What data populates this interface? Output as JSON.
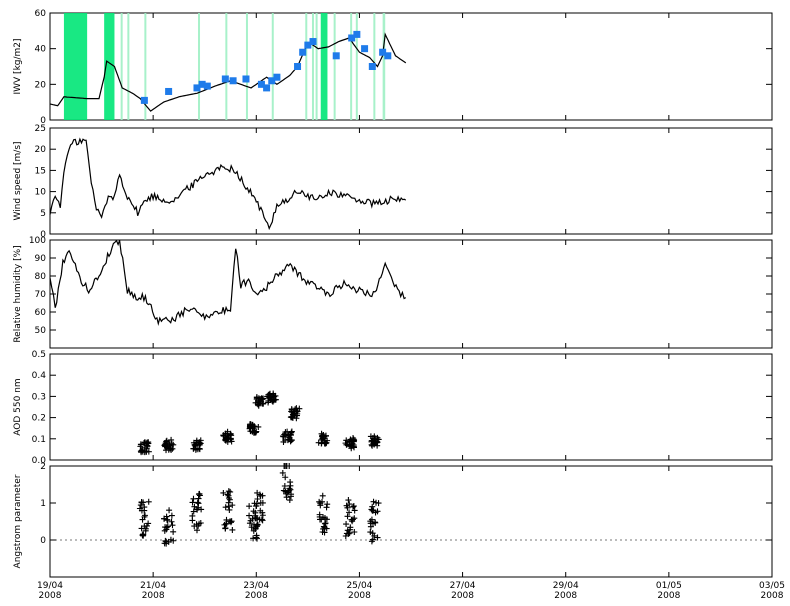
{
  "chart_data": {
    "type": "line",
    "x_axis": {
      "start": "19/04/2008",
      "end": "03/05/2008",
      "tick_labels": [
        {
          "day": 0,
          "date": "19/04",
          "year": "2008"
        },
        {
          "day": 2,
          "date": "21/04",
          "year": "2008"
        },
        {
          "day": 4,
          "date": "23/04",
          "year": "2008"
        },
        {
          "day": 6,
          "date": "25/04",
          "year": "2008"
        },
        {
          "day": 8,
          "date": "27/04",
          "year": "2008"
        },
        {
          "day": 10,
          "date": "29/04",
          "year": "2008"
        },
        {
          "day": 12,
          "date": "01/05",
          "year": "2008"
        },
        {
          "day": 14,
          "date": "03/05",
          "year": "2008"
        }
      ]
    },
    "colors": {
      "line": "#000000",
      "shade": "#00e676",
      "shade_light": "#9ef0c4",
      "marker": "#1e7bea",
      "dotted": "#777777"
    },
    "panels": [
      {
        "ylabel": "IWV [kg/m2]",
        "ylim": [
          0,
          60
        ],
        "yticks": [
          0,
          20,
          40,
          60
        ],
        "shaded_spans": [
          [
            0.27,
            0.72
          ],
          [
            1.05,
            1.25
          ],
          [
            1.37,
            1.4
          ],
          [
            1.5,
            1.52
          ],
          [
            1.83,
            1.86
          ],
          [
            2.87,
            2.9
          ],
          [
            3.4,
            3.43
          ],
          [
            3.8,
            3.83
          ],
          [
            4.3,
            4.32
          ],
          [
            4.95,
            4.98
          ],
          [
            5.08,
            5.1
          ],
          [
            5.15,
            5.18
          ],
          [
            5.25,
            5.38
          ],
          [
            5.5,
            5.52
          ],
          [
            5.82,
            5.85
          ],
          [
            5.93,
            5.96
          ],
          [
            6.27,
            6.3
          ],
          [
            6.45,
            6.5
          ]
        ],
        "line": [
          [
            0.0,
            9
          ],
          [
            0.15,
            8
          ],
          [
            0.27,
            13
          ],
          [
            0.72,
            12
          ],
          [
            0.95,
            12
          ],
          [
            1.05,
            24
          ],
          [
            1.1,
            33
          ],
          [
            1.25,
            30
          ],
          [
            1.4,
            18
          ],
          [
            1.6,
            15
          ],
          [
            1.75,
            12
          ],
          [
            1.95,
            5
          ],
          [
            2.2,
            10
          ],
          [
            2.5,
            13
          ],
          [
            2.85,
            15
          ],
          [
            3.2,
            19
          ],
          [
            3.5,
            22
          ],
          [
            3.7,
            20
          ],
          [
            3.9,
            18
          ],
          [
            4.2,
            24
          ],
          [
            4.4,
            20
          ],
          [
            4.55,
            23
          ],
          [
            4.65,
            25
          ],
          [
            4.8,
            30
          ],
          [
            4.95,
            40
          ],
          [
            5.05,
            43
          ],
          [
            5.2,
            40
          ],
          [
            5.4,
            41
          ],
          [
            5.6,
            44
          ],
          [
            5.8,
            46
          ],
          [
            6.0,
            38
          ],
          [
            6.2,
            35
          ],
          [
            6.35,
            30
          ],
          [
            6.45,
            36
          ],
          [
            6.5,
            48
          ],
          [
            6.7,
            36
          ],
          [
            6.9,
            32
          ]
        ],
        "markers": [
          [
            1.83,
            11
          ],
          [
            2.3,
            16
          ],
          [
            2.85,
            18
          ],
          [
            2.95,
            20
          ],
          [
            3.05,
            19
          ],
          [
            3.4,
            23
          ],
          [
            3.55,
            22
          ],
          [
            3.8,
            23
          ],
          [
            4.1,
            20
          ],
          [
            4.2,
            18
          ],
          [
            4.3,
            22
          ],
          [
            4.4,
            24
          ],
          [
            4.8,
            30
          ],
          [
            4.9,
            38
          ],
          [
            5.0,
            42
          ],
          [
            5.1,
            44
          ],
          [
            5.55,
            36
          ],
          [
            5.85,
            46
          ],
          [
            5.95,
            48
          ],
          [
            6.1,
            40
          ],
          [
            6.25,
            30
          ],
          [
            6.45,
            38
          ],
          [
            6.55,
            36
          ]
        ]
      },
      {
        "ylabel": "Wind speed [m/s]",
        "ylim": [
          0,
          25
        ],
        "yticks": [
          0,
          5,
          10,
          15,
          20,
          25
        ],
        "line": [
          [
            0.0,
            5
          ],
          [
            0.1,
            9
          ],
          [
            0.2,
            7
          ],
          [
            0.3,
            17
          ],
          [
            0.4,
            21
          ],
          [
            0.55,
            22
          ],
          [
            0.7,
            22
          ],
          [
            0.8,
            12
          ],
          [
            0.9,
            6
          ],
          [
            1.0,
            4
          ],
          [
            1.1,
            8
          ],
          [
            1.25,
            9
          ],
          [
            1.35,
            14
          ],
          [
            1.5,
            9
          ],
          [
            1.7,
            5
          ],
          [
            1.85,
            8
          ],
          [
            2.0,
            9
          ],
          [
            2.2,
            8
          ],
          [
            2.4,
            8
          ],
          [
            2.6,
            10
          ],
          [
            2.8,
            12
          ],
          [
            3.0,
            14
          ],
          [
            3.2,
            15
          ],
          [
            3.4,
            16
          ],
          [
            3.6,
            15
          ],
          [
            3.8,
            11
          ],
          [
            4.0,
            8
          ],
          [
            4.15,
            4
          ],
          [
            4.25,
            1
          ],
          [
            4.4,
            7
          ],
          [
            4.6,
            8
          ],
          [
            4.8,
            10
          ],
          [
            5.0,
            9
          ],
          [
            5.2,
            8
          ],
          [
            5.4,
            10
          ],
          [
            5.7,
            9
          ],
          [
            6.0,
            8
          ],
          [
            6.3,
            7
          ],
          [
            6.6,
            8
          ],
          [
            6.9,
            8
          ]
        ]
      },
      {
        "ylabel": "Relative humidity [%]",
        "ylim": [
          40,
          100
        ],
        "yticks": [
          50,
          60,
          70,
          80,
          90,
          100
        ],
        "line": [
          [
            0.0,
            80
          ],
          [
            0.1,
            62
          ],
          [
            0.25,
            88
          ],
          [
            0.4,
            94
          ],
          [
            0.55,
            80
          ],
          [
            0.75,
            72
          ],
          [
            0.95,
            80
          ],
          [
            1.2,
            96
          ],
          [
            1.35,
            100
          ],
          [
            1.5,
            72
          ],
          [
            1.7,
            68
          ],
          [
            1.85,
            68
          ],
          [
            2.1,
            55
          ],
          [
            2.4,
            56
          ],
          [
            2.7,
            62
          ],
          [
            3.0,
            58
          ],
          [
            3.3,
            60
          ],
          [
            3.5,
            62
          ],
          [
            3.6,
            96
          ],
          [
            3.7,
            75
          ],
          [
            3.85,
            78
          ],
          [
            4.0,
            70
          ],
          [
            4.2,
            74
          ],
          [
            4.4,
            80
          ],
          [
            4.6,
            86
          ],
          [
            4.8,
            82
          ],
          [
            5.0,
            76
          ],
          [
            5.2,
            74
          ],
          [
            5.4,
            70
          ],
          [
            5.7,
            76
          ],
          [
            6.0,
            72
          ],
          [
            6.3,
            70
          ],
          [
            6.5,
            88
          ],
          [
            6.65,
            75
          ],
          [
            6.8,
            70
          ],
          [
            6.9,
            68
          ]
        ]
      },
      {
        "ylabel": "AOD 550 nm",
        "ylim": [
          0,
          0.5
        ],
        "yticks": [
          0.0,
          0.1,
          0.2,
          0.3,
          0.4,
          0.5
        ],
        "scatter_clusters": [
          [
            1.83,
            0.06
          ],
          [
            2.3,
            0.07
          ],
          [
            2.85,
            0.07
          ],
          [
            3.45,
            0.11
          ],
          [
            3.95,
            0.15
          ],
          [
            4.05,
            0.28
          ],
          [
            4.3,
            0.29
          ],
          [
            4.6,
            0.11
          ],
          [
            4.75,
            0.22
          ],
          [
            5.3,
            0.1
          ],
          [
            5.82,
            0.08
          ],
          [
            6.3,
            0.09
          ]
        ]
      },
      {
        "ylabel": "Angstrom parameter",
        "ylim": [
          -1,
          2
        ],
        "yticks": [
          0,
          1,
          2
        ],
        "reference_line": 0,
        "scatter_clusters": [
          [
            1.83,
            0.6
          ],
          [
            2.3,
            0.4
          ],
          [
            2.85,
            0.8
          ],
          [
            3.45,
            0.8
          ],
          [
            3.95,
            0.4
          ],
          [
            4.05,
            0.9
          ],
          [
            4.6,
            1.5
          ],
          [
            5.3,
            0.7
          ],
          [
            5.82,
            0.6
          ],
          [
            6.3,
            0.5
          ]
        ]
      }
    ]
  }
}
